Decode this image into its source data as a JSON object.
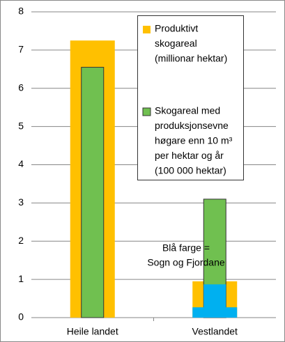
{
  "chart_data": {
    "type": "bar",
    "categories": [
      "Heile landet",
      "Vestlandet"
    ],
    "series": [
      {
        "name": [
          "Produktivt",
          "skogareal",
          "(millionar hektar)"
        ],
        "color": "#ffc000",
        "width": "wide",
        "values": [
          7.25,
          0.95
        ]
      },
      {
        "name": [
          "Skogareal med",
          "produksjonsevne",
          "høgare enn 10 m³",
          "per hektar og år",
          "(100 000 hektar)"
        ],
        "color": "#70c050",
        "width": "narrow",
        "values": [
          6.55,
          3.1
        ]
      },
      {
        "color": "#00b0f0",
        "width": "wide",
        "values": [
          null,
          0.27
        ]
      },
      {
        "color": "#00b0f0",
        "width": "narrow",
        "values": [
          null,
          0.87
        ]
      }
    ],
    "annotation": [
      "Blå farge =",
      "Sogn og Fjordane"
    ],
    "ylim": [
      0,
      8
    ],
    "yticks": [
      0,
      1,
      2,
      3,
      4,
      5,
      6,
      7,
      8
    ],
    "grid": true
  }
}
